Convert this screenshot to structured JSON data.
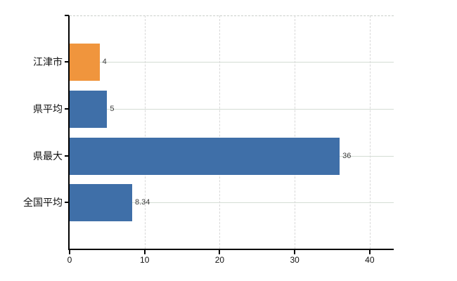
{
  "chart_data": {
    "type": "bar",
    "orientation": "horizontal",
    "title": "",
    "xlabel": "",
    "ylabel": "",
    "categories": [
      "江津市",
      "県平均",
      "県最大",
      "全国平均"
    ],
    "values": [
      4,
      5,
      36,
      8.34
    ],
    "value_labels": [
      "4",
      "5",
      "36",
      "8.34"
    ],
    "bar_colors": [
      "#f0953d",
      "#3f6fa8",
      "#3f6fa8",
      "#3f6fa8"
    ],
    "x_ticks": [
      0,
      10,
      20,
      30,
      40
    ],
    "x_tick_labels": [
      "0",
      "10",
      "20",
      "30",
      "40"
    ],
    "xlim": [
      0,
      43.2
    ],
    "legend": null,
    "grid": {
      "horizontal": true,
      "vertical": true,
      "top_border_dashed": true,
      "horizontal_color": "#d4ddd4",
      "vertical_color": "#d8d8d8"
    },
    "axis_color": "#000000",
    "value_label_color": "#3c3c3c",
    "tick_label_color": "#111111"
  }
}
